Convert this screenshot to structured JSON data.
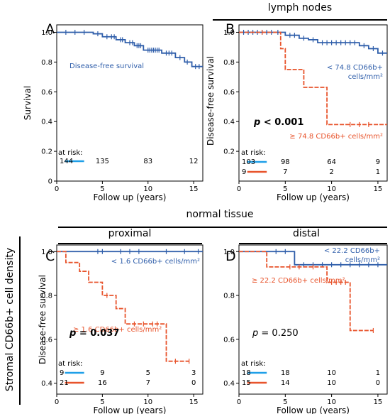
{
  "colors": {
    "blue": "#2f5eaa",
    "orange": "#e8542c",
    "risk_blue": "#1f9fe8"
  },
  "headers": {
    "lymph_nodes": "lymph nodes",
    "normal_tissue": "normal tissue",
    "proximal": "proximal",
    "distal": "distal"
  },
  "side_label": "Stromal CD66b+ cell density",
  "chart_data": [
    {
      "panel": "A",
      "type": "line",
      "step": true,
      "xlabel": "Follow up (years)",
      "ylabel": "Survival",
      "xlim": [
        0,
        16
      ],
      "ylim": [
        0,
        1.05
      ],
      "xticks": [
        0,
        5,
        10,
        15
      ],
      "yticks": [
        0,
        0.2,
        0.4,
        0.6,
        0.8,
        1.0
      ],
      "xtick_labels": [
        "0",
        "5",
        "10",
        "15"
      ],
      "ytick_labels": [
        "0",
        "0.2",
        "0.4",
        "0.6",
        "0.8",
        "1.0"
      ],
      "series": [
        {
          "name": "Disease-free survival",
          "color": "blue",
          "steps": [
            [
              0,
              1
            ],
            [
              4,
              0.99
            ],
            [
              5,
              0.97
            ],
            [
              6.5,
              0.95
            ],
            [
              7.5,
              0.93
            ],
            [
              8.5,
              0.91
            ],
            [
              9.5,
              0.88
            ],
            [
              11.5,
              0.86
            ],
            [
              13,
              0.83
            ],
            [
              14,
              0.8
            ],
            [
              14.8,
              0.77
            ],
            [
              16,
              0.77
            ]
          ],
          "censor": [
            1,
            2,
            3,
            4.5,
            5.5,
            6,
            6.3,
            7,
            7.2,
            8,
            8.3,
            8.8,
            9,
            9.2,
            10,
            10.2,
            10.4,
            10.6,
            10.8,
            11,
            11.2,
            12,
            12.3,
            12.6,
            13.5,
            14.3,
            15.2,
            15.6
          ]
        }
      ],
      "risk_label": "at risk:",
      "risk": [
        {
          "color": "risk_blue",
          "counts": [
            "144",
            "135",
            "83",
            "12"
          ]
        }
      ]
    },
    {
      "panel": "B",
      "type": "line",
      "step": true,
      "xlabel": "Follow up (years)",
      "ylabel": "Disease-free survival",
      "xlim": [
        0,
        16
      ],
      "ylim": [
        0,
        1.05
      ],
      "xticks": [
        0,
        5,
        10,
        15
      ],
      "yticks": [
        0.2,
        0.4,
        0.6,
        0.8,
        1.0
      ],
      "xtick_labels": [
        "0",
        "5",
        "10",
        "15"
      ],
      "ytick_labels": [
        "0.2",
        "0.4",
        "0.6",
        "0.8",
        "1.0"
      ],
      "series": [
        {
          "name": "< 74.8 CD66b+ cells/mm²",
          "color": "blue",
          "steps": [
            [
              0,
              1
            ],
            [
              5,
              0.98
            ],
            [
              6.5,
              0.96
            ],
            [
              7.5,
              0.95
            ],
            [
              8.5,
              0.93
            ],
            [
              13,
              0.91
            ],
            [
              14,
              0.89
            ],
            [
              15,
              0.86
            ],
            [
              16,
              0.86
            ]
          ],
          "censor": [
            0.5,
            1,
            1.5,
            2,
            2.5,
            3,
            3.5,
            4.2,
            5.5,
            6,
            7,
            8,
            9,
            9.5,
            10,
            10.5,
            11,
            11.5,
            12,
            12.5,
            13.5,
            14.5,
            15.5
          ]
        },
        {
          "name": "≥ 74.8 CD66b+ cells/mm²",
          "color": "orange",
          "dashed": true,
          "steps": [
            [
              0,
              1
            ],
            [
              4.5,
              0.89
            ],
            [
              5,
              0.75
            ],
            [
              7,
              0.63
            ],
            [
              9.5,
              0.38
            ],
            [
              16,
              0.38
            ]
          ],
          "censor": [
            2.5,
            12,
            13,
            14
          ]
        }
      ],
      "pvalue": "p < 0.001",
      "risk_label": "at risk:",
      "risk": [
        {
          "color": "risk_blue",
          "counts": [
            "103",
            "98",
            "64",
            "9"
          ]
        },
        {
          "color": "orange",
          "counts": [
            "9",
            "7",
            "2",
            "1"
          ]
        }
      ]
    },
    {
      "panel": "C",
      "type": "line",
      "step": true,
      "xlabel": "Follow up (years)",
      "ylabel": "Disease-free survival",
      "xlim": [
        0,
        16
      ],
      "ylim": [
        0.35,
        1.03
      ],
      "xticks": [
        0,
        5,
        10,
        15
      ],
      "yticks": [
        0.4,
        0.6,
        0.8,
        1.0
      ],
      "xtick_labels": [
        "0",
        "5",
        "10",
        "15"
      ],
      "ytick_labels": [
        "0.4",
        "0.6",
        "0.8",
        "1.0"
      ],
      "series": [
        {
          "name": "< 1.6 CD66b+ cells/mm²",
          "color": "blue",
          "steps": [
            [
              0,
              1
            ],
            [
              16,
              1
            ]
          ],
          "censor": [
            4.5,
            5,
            7,
            8,
            9,
            12,
            14,
            15.5
          ]
        },
        {
          "name": "≥ 1.6 CD66b+ cells/mm²",
          "color": "orange",
          "dashed": true,
          "steps": [
            [
              0,
              1
            ],
            [
              1,
              0.95
            ],
            [
              2.5,
              0.91
            ],
            [
              3.5,
              0.86
            ],
            [
              5,
              0.8
            ],
            [
              6.5,
              0.74
            ],
            [
              7.5,
              0.67
            ],
            [
              12,
              0.5
            ],
            [
              14.5,
              0.5
            ]
          ],
          "censor": [
            5.5,
            8.5,
            9.5,
            10.5,
            11,
            13,
            14.5
          ]
        }
      ],
      "pvalue": "p = 0.037",
      "risk_label": "at risk:",
      "risk": [
        {
          "color": "risk_blue",
          "counts": [
            "9",
            "9",
            "5",
            "3"
          ]
        },
        {
          "color": "orange",
          "counts": [
            "21",
            "16",
            "7",
            "0"
          ]
        }
      ]
    },
    {
      "panel": "D",
      "type": "line",
      "step": true,
      "xlabel": "Follow up (years)",
      "ylabel": "",
      "xlim": [
        0,
        16
      ],
      "ylim": [
        0.35,
        1.03
      ],
      "xticks": [
        0,
        5,
        10,
        15
      ],
      "yticks": [
        0.4,
        0.6,
        0.8,
        1.0
      ],
      "xtick_labels": [
        "0",
        "5",
        "10",
        "15"
      ],
      "ytick_labels": [
        "0.4",
        "0.6",
        "0.8",
        "1.0"
      ],
      "series": [
        {
          "name": "< 22.2 CD66b+ cells/mm²",
          "color": "blue",
          "steps": [
            [
              0,
              1
            ],
            [
              6,
              0.94
            ],
            [
              16,
              0.94
            ]
          ],
          "censor": [
            4,
            5,
            7,
            8,
            9,
            10,
            11,
            12,
            13,
            14,
            15
          ]
        },
        {
          "name": "≥ 22.2 CD66b+ cells/mm²",
          "color": "orange",
          "dashed": true,
          "steps": [
            [
              0,
              1
            ],
            [
              3,
              0.93
            ],
            [
              9.5,
              0.86
            ],
            [
              12,
              0.64
            ],
            [
              14.5,
              0.64
            ]
          ],
          "censor": [
            5.5,
            6.5,
            8,
            10,
            10.5,
            11,
            11.5,
            14.5
          ]
        }
      ],
      "pvalue": "p = 0.250",
      "risk_label": "at risk:",
      "risk": [
        {
          "color": "risk_blue",
          "counts": [
            "18",
            "18",
            "10",
            "1"
          ]
        },
        {
          "color": "orange",
          "counts": [
            "15",
            "14",
            "10",
            "0"
          ]
        }
      ]
    }
  ]
}
